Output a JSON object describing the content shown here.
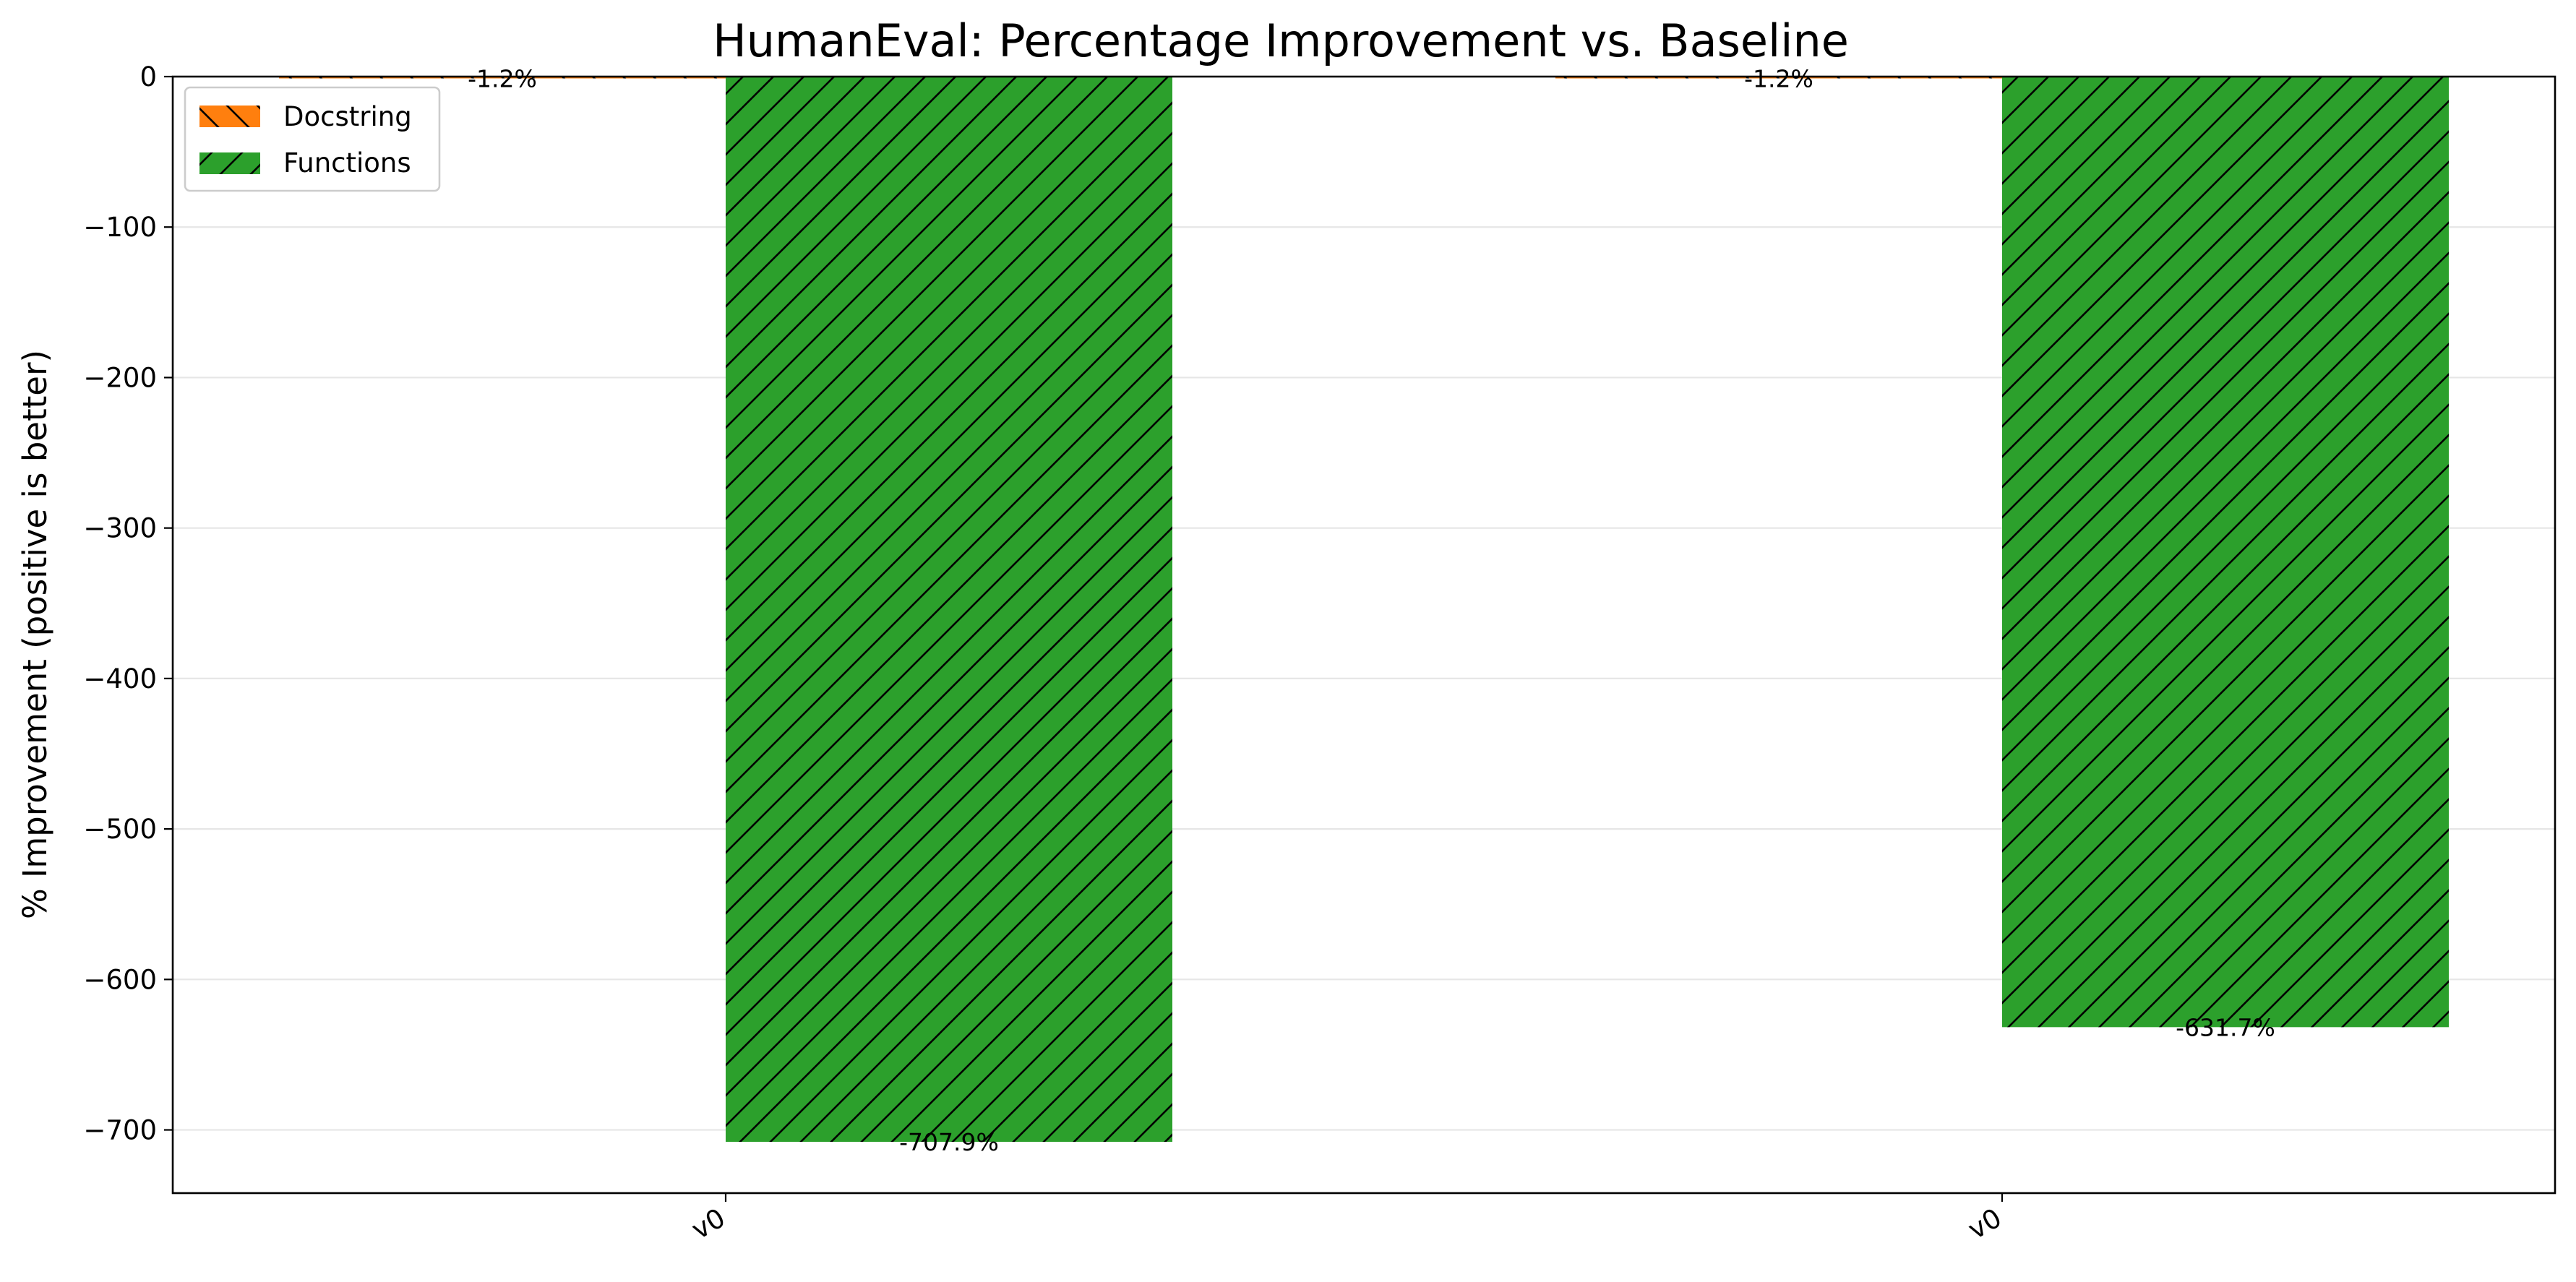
{
  "chart_data": {
    "type": "bar",
    "title": "HumanEval: Percentage Improvement vs. Baseline",
    "xlabel": "",
    "ylabel": "% Improvement (positive is better)",
    "categories": [
      "v0",
      "v0"
    ],
    "ylim": [
      -742,
      0
    ],
    "yticks": [
      0,
      -100,
      -200,
      -300,
      -400,
      -500,
      -600,
      -700
    ],
    "grid": "y",
    "legend_position": "top-left",
    "series": [
      {
        "name": "Docstring",
        "color": "#ff7f0e",
        "hatch": "backslash",
        "values": [
          -1.2,
          -1.2
        ],
        "labels": [
          "-1.2%",
          "-1.2%"
        ]
      },
      {
        "name": "Functions",
        "color": "#2ca02c",
        "hatch": "slash",
        "values": [
          -707.9,
          -631.7
        ],
        "labels": [
          "-707.9%",
          "-631.7%"
        ]
      }
    ]
  }
}
